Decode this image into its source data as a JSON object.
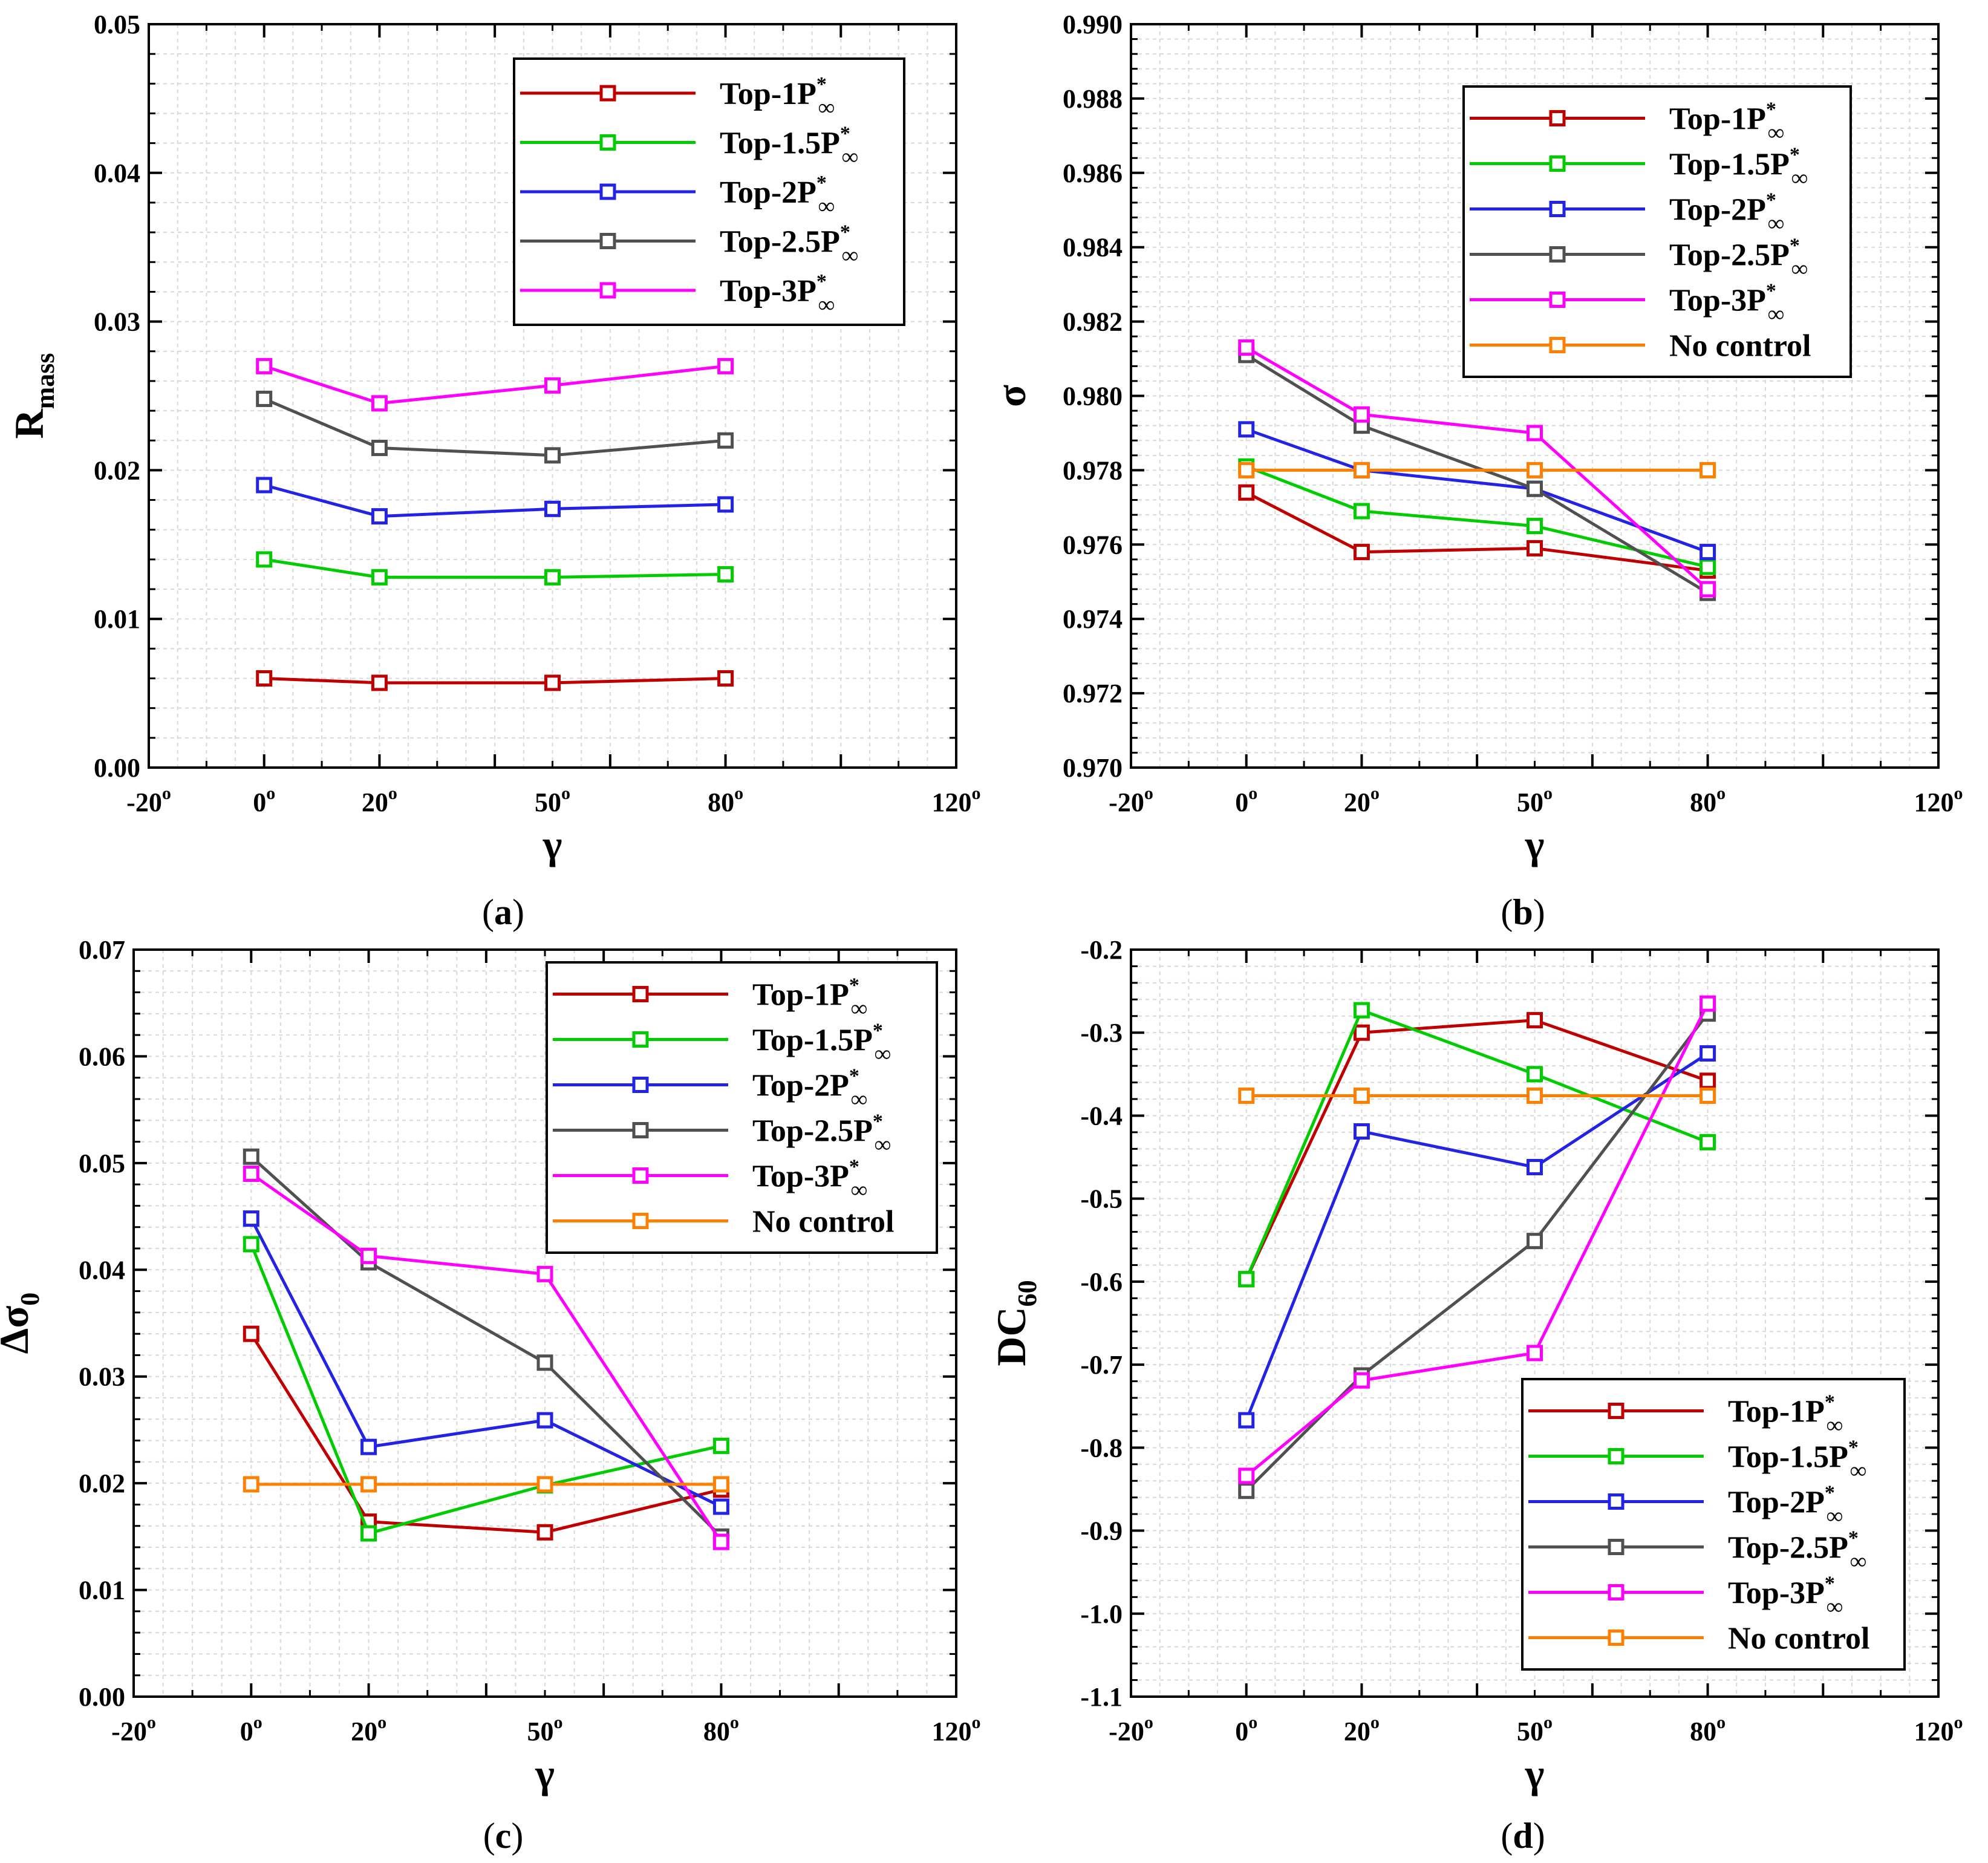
{
  "colors": {
    "red": "#c00000",
    "green": "#00cc00",
    "blue": "#2323e6",
    "gray": "#505050",
    "magenta": "#ff00ff",
    "orange": "#ff8000",
    "grid": "#d9d9d9"
  },
  "legend_labels": {
    "top1": "Top-1P",
    "top15": "Top-1.5P",
    "top2": "Top-2P",
    "top25": "Top-2.5P",
    "top3": "Top-3P",
    "none": "No control",
    "sup": "*",
    "sub": "∞"
  },
  "chart_data": [
    {
      "id": "a",
      "caption_letter": "a",
      "type": "line",
      "xlabel": "γ",
      "ylabel": "R",
      "ylabel_sub": "mass",
      "x": [
        0,
        20,
        50,
        80
      ],
      "xlim": [
        -20,
        120
      ],
      "x_tick_labels": [
        "-20",
        "0",
        "20",
        "50",
        "80",
        "120"
      ],
      "x_tick_sup": "o",
      "ylim": [
        0,
        0.05
      ],
      "y_tick_labels": [
        "0.00",
        "0.01",
        "0.02",
        "0.03",
        "0.04",
        "0.05"
      ],
      "legend_position": "top-right",
      "series": [
        {
          "key": "top1",
          "color_key": "red",
          "values": [
            0.006,
            0.0057,
            0.0057,
            0.006
          ]
        },
        {
          "key": "top15",
          "color_key": "green",
          "values": [
            0.014,
            0.0128,
            0.0128,
            0.013
          ]
        },
        {
          "key": "top2",
          "color_key": "blue",
          "values": [
            0.019,
            0.0169,
            0.0174,
            0.0177
          ]
        },
        {
          "key": "top25",
          "color_key": "gray",
          "values": [
            0.0248,
            0.0215,
            0.021,
            0.022
          ]
        },
        {
          "key": "top3",
          "color_key": "magenta",
          "values": [
            0.027,
            0.0245,
            0.0257,
            0.027
          ]
        }
      ]
    },
    {
      "id": "b",
      "caption_letter": "b",
      "type": "line",
      "xlabel": "γ",
      "ylabel": "σ",
      "ylabel_sub": "",
      "x": [
        0,
        20,
        50,
        80
      ],
      "xlim": [
        -20,
        120
      ],
      "x_tick_labels": [
        "-20",
        "0",
        "20",
        "50",
        "80",
        "120"
      ],
      "x_tick_sup": "o",
      "ylim": [
        0.97,
        0.99
      ],
      "y_tick_labels": [
        "0.970",
        "0.972",
        "0.974",
        "0.976",
        "0.978",
        "0.980",
        "0.982",
        "0.984",
        "0.986",
        "0.988",
        "0.990"
      ],
      "legend_position": "top-right",
      "series": [
        {
          "key": "top1",
          "color_key": "red",
          "values": [
            0.9774,
            0.9758,
            0.9759,
            0.9753
          ]
        },
        {
          "key": "top15",
          "color_key": "green",
          "values": [
            0.9781,
            0.9769,
            0.9765,
            0.9754
          ]
        },
        {
          "key": "top2",
          "color_key": "blue",
          "values": [
            0.9791,
            0.978,
            0.9775,
            0.9758
          ]
        },
        {
          "key": "top25",
          "color_key": "gray",
          "values": [
            0.9811,
            0.9792,
            0.9775,
            0.9747
          ]
        },
        {
          "key": "top3",
          "color_key": "magenta",
          "values": [
            0.9813,
            0.9795,
            0.979,
            0.9748
          ]
        },
        {
          "key": "none",
          "color_key": "orange",
          "values": [
            0.978,
            0.978,
            0.978,
            0.978
          ]
        }
      ]
    },
    {
      "id": "c",
      "caption_letter": "c",
      "type": "line",
      "xlabel": "γ",
      "ylabel": "Δσ",
      "ylabel_sub": "0",
      "x": [
        0,
        20,
        50,
        80
      ],
      "xlim": [
        -20,
        120
      ],
      "x_tick_labels": [
        "-20",
        "0",
        "20",
        "50",
        "80",
        "120"
      ],
      "x_tick_sup": "o",
      "ylim": [
        0,
        0.07
      ],
      "y_tick_labels": [
        "0.00",
        "0.01",
        "0.02",
        "0.03",
        "0.04",
        "0.05",
        "0.06",
        "0.07"
      ],
      "legend_position": "top-right",
      "series": [
        {
          "key": "top1",
          "color_key": "red",
          "values": [
            0.034,
            0.0164,
            0.0154,
            0.0194
          ]
        },
        {
          "key": "top15",
          "color_key": "green",
          "values": [
            0.0424,
            0.0153,
            0.0198,
            0.0235
          ]
        },
        {
          "key": "top2",
          "color_key": "blue",
          "values": [
            0.0448,
            0.0234,
            0.0259,
            0.0178
          ]
        },
        {
          "key": "top25",
          "color_key": "gray",
          "values": [
            0.0506,
            0.0407,
            0.0313,
            0.015
          ]
        },
        {
          "key": "top3",
          "color_key": "magenta",
          "values": [
            0.049,
            0.0413,
            0.0396,
            0.0145
          ]
        },
        {
          "key": "none",
          "color_key": "orange",
          "values": [
            0.0199,
            0.0199,
            0.0199,
            0.0199
          ]
        }
      ]
    },
    {
      "id": "d",
      "caption_letter": "d",
      "type": "line",
      "xlabel": "γ",
      "ylabel": "DC",
      "ylabel_sub": "60",
      "x": [
        0,
        20,
        50,
        80
      ],
      "xlim": [
        -20,
        120
      ],
      "x_tick_labels": [
        "-20",
        "0",
        "20",
        "50",
        "80",
        "120"
      ],
      "x_tick_sup": "o",
      "ylim": [
        -1.1,
        -0.2
      ],
      "y_tick_labels": [
        "-1.1",
        "-1.0",
        "-0.9",
        "-0.8",
        "-0.7",
        "-0.6",
        "-0.5",
        "-0.4",
        "-0.3",
        "-0.2"
      ],
      "legend_position": "bottom-right",
      "series": [
        {
          "key": "top1",
          "color_key": "red",
          "values": [
            -0.597,
            -0.3,
            -0.285,
            -0.358
          ]
        },
        {
          "key": "top15",
          "color_key": "green",
          "values": [
            -0.597,
            -0.273,
            -0.35,
            -0.432
          ]
        },
        {
          "key": "top2",
          "color_key": "blue",
          "values": [
            -0.767,
            -0.419,
            -0.462,
            -0.325
          ]
        },
        {
          "key": "top25",
          "color_key": "gray",
          "values": [
            -0.852,
            -0.713,
            -0.551,
            -0.277
          ]
        },
        {
          "key": "top3",
          "color_key": "magenta",
          "values": [
            -0.834,
            -0.719,
            -0.686,
            -0.265
          ]
        },
        {
          "key": "none",
          "color_key": "orange",
          "values": [
            -0.376,
            -0.376,
            -0.376,
            -0.376
          ]
        }
      ]
    }
  ]
}
